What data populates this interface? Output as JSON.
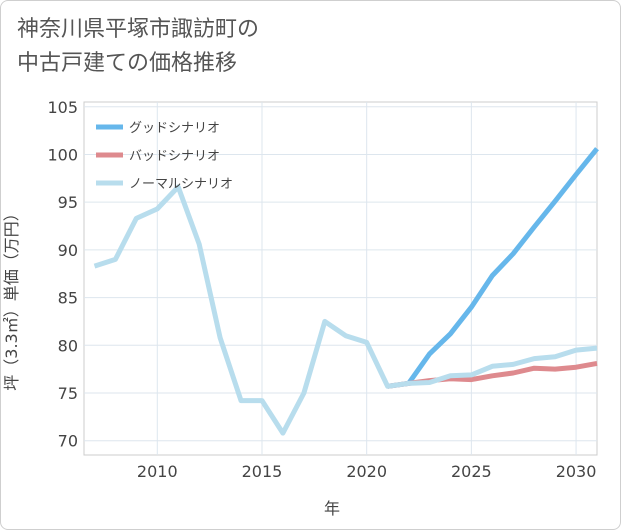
{
  "title": {
    "line1": "神奈川県平塚市諏訪町の",
    "line2": "中古戸建ての価格推移"
  },
  "chart_data": {
    "type": "line",
    "title": "神奈川県平塚市諏訪町の中古戸建ての価格推移",
    "xlabel": "年",
    "ylabel": "坪（3.3㎡）単価（万円）",
    "xlim": [
      2006.5,
      2031
    ],
    "ylim": [
      68.5,
      105.5
    ],
    "xticks": [
      2010,
      2015,
      2020,
      2025,
      2030
    ],
    "yticks": [
      70,
      75,
      80,
      85,
      90,
      95,
      100,
      105
    ],
    "grid": true,
    "legend_position": "top-left",
    "series": [
      {
        "name": "グッドシナリオ",
        "color": "#66b7eb",
        "x": [
          2021,
          2022,
          2023,
          2024,
          2025,
          2026,
          2027,
          2028,
          2029,
          2030,
          2031
        ],
        "values": [
          75.7,
          76.0,
          79.1,
          81.2,
          84.0,
          87.3,
          89.6,
          92.4,
          95.1,
          97.9,
          100.6
        ]
      },
      {
        "name": "バッドシナリオ",
        "color": "#de8a8e",
        "x": [
          2021,
          2022,
          2023,
          2024,
          2025,
          2026,
          2027,
          2028,
          2029,
          2030,
          2031
        ],
        "values": [
          75.7,
          76.0,
          76.3,
          76.5,
          76.4,
          76.8,
          77.1,
          77.6,
          77.5,
          77.7,
          78.1
        ]
      },
      {
        "name": "ノーマルシナリオ",
        "color": "#b8dded",
        "x": [
          2007,
          2008,
          2009,
          2010,
          2011,
          2012,
          2013,
          2014,
          2015,
          2016,
          2017,
          2018,
          2019,
          2020,
          2021,
          2022,
          2023,
          2024,
          2025,
          2026,
          2027,
          2028,
          2029,
          2030,
          2031
        ],
        "values": [
          88.3,
          89.0,
          93.3,
          94.3,
          96.6,
          90.6,
          80.8,
          74.2,
          74.2,
          70.8,
          75.0,
          82.5,
          81.0,
          80.3,
          75.7,
          76.0,
          76.1,
          76.8,
          76.9,
          77.8,
          78.0,
          78.6,
          78.8,
          79.5,
          79.7
        ]
      }
    ]
  }
}
